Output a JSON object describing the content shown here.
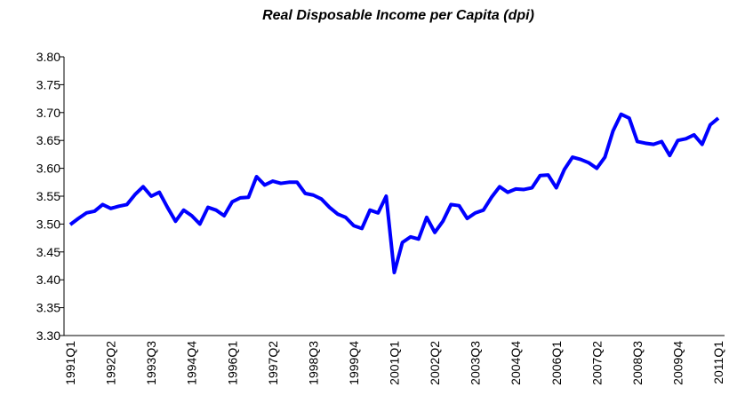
{
  "chart_data": {
    "type": "line",
    "title": "Real Disposable Income per Capita (dpi)",
    "categories": [
      "1991Q1",
      null,
      null,
      null,
      null,
      "1992Q2",
      null,
      null,
      null,
      null,
      "1993Q3",
      null,
      null,
      null,
      null,
      "1994Q4",
      null,
      null,
      null,
      null,
      "1996Q1",
      null,
      null,
      null,
      null,
      "1997Q2",
      null,
      null,
      null,
      null,
      "1998Q3",
      null,
      null,
      null,
      null,
      "1999Q4",
      null,
      null,
      null,
      null,
      "2001Q1",
      null,
      null,
      null,
      null,
      "2002Q2",
      null,
      null,
      null,
      null,
      "2003Q3",
      null,
      null,
      null,
      null,
      "2004Q4",
      null,
      null,
      null,
      null,
      "2006Q1",
      null,
      null,
      null,
      null,
      "2007Q2",
      null,
      null,
      null,
      null,
      "2008Q3",
      null,
      null,
      null,
      null,
      "2009Q4",
      null,
      null,
      null,
      null,
      "2011Q1"
    ],
    "series": [
      {
        "name": "dpi",
        "color": "#0000ff",
        "values": [
          3.499,
          3.51,
          3.52,
          3.523,
          3.535,
          3.528,
          3.532,
          3.535,
          3.553,
          3.567,
          3.55,
          3.557,
          3.53,
          3.505,
          3.525,
          3.515,
          3.5,
          3.53,
          3.525,
          3.515,
          3.54,
          3.547,
          3.548,
          3.585,
          3.57,
          3.577,
          3.573,
          3.575,
          3.575,
          3.555,
          3.552,
          3.545,
          3.53,
          3.518,
          3.512,
          3.497,
          3.492,
          3.525,
          3.52,
          3.55,
          3.413,
          3.467,
          3.477,
          3.473,
          3.512,
          3.485,
          3.505,
          3.535,
          3.533,
          3.51,
          3.52,
          3.525,
          3.548,
          3.567,
          3.557,
          3.563,
          3.562,
          3.565,
          3.587,
          3.588,
          3.565,
          3.598,
          3.62,
          3.616,
          3.61,
          3.6,
          3.62,
          3.667,
          3.697,
          3.69,
          3.648,
          3.645,
          3.643,
          3.648,
          3.623,
          3.65,
          3.653,
          3.66,
          3.643,
          3.678,
          3.69
        ]
      }
    ],
    "ylim": [
      3.3,
      3.8
    ],
    "yticks": [
      {
        "value": 3.3,
        "label": "3.30"
      },
      3.35,
      {
        "value": 3.4,
        "label": "3.40"
      },
      3.45,
      {
        "value": 3.5,
        "label": "3.50"
      },
      3.55,
      {
        "value": 3.6,
        "label": "3.60"
      },
      3.65,
      {
        "value": 3.7,
        "label": "3.70"
      },
      3.75,
      {
        "value": 3.8,
        "label": "3.80"
      }
    ],
    "grid": false
  }
}
